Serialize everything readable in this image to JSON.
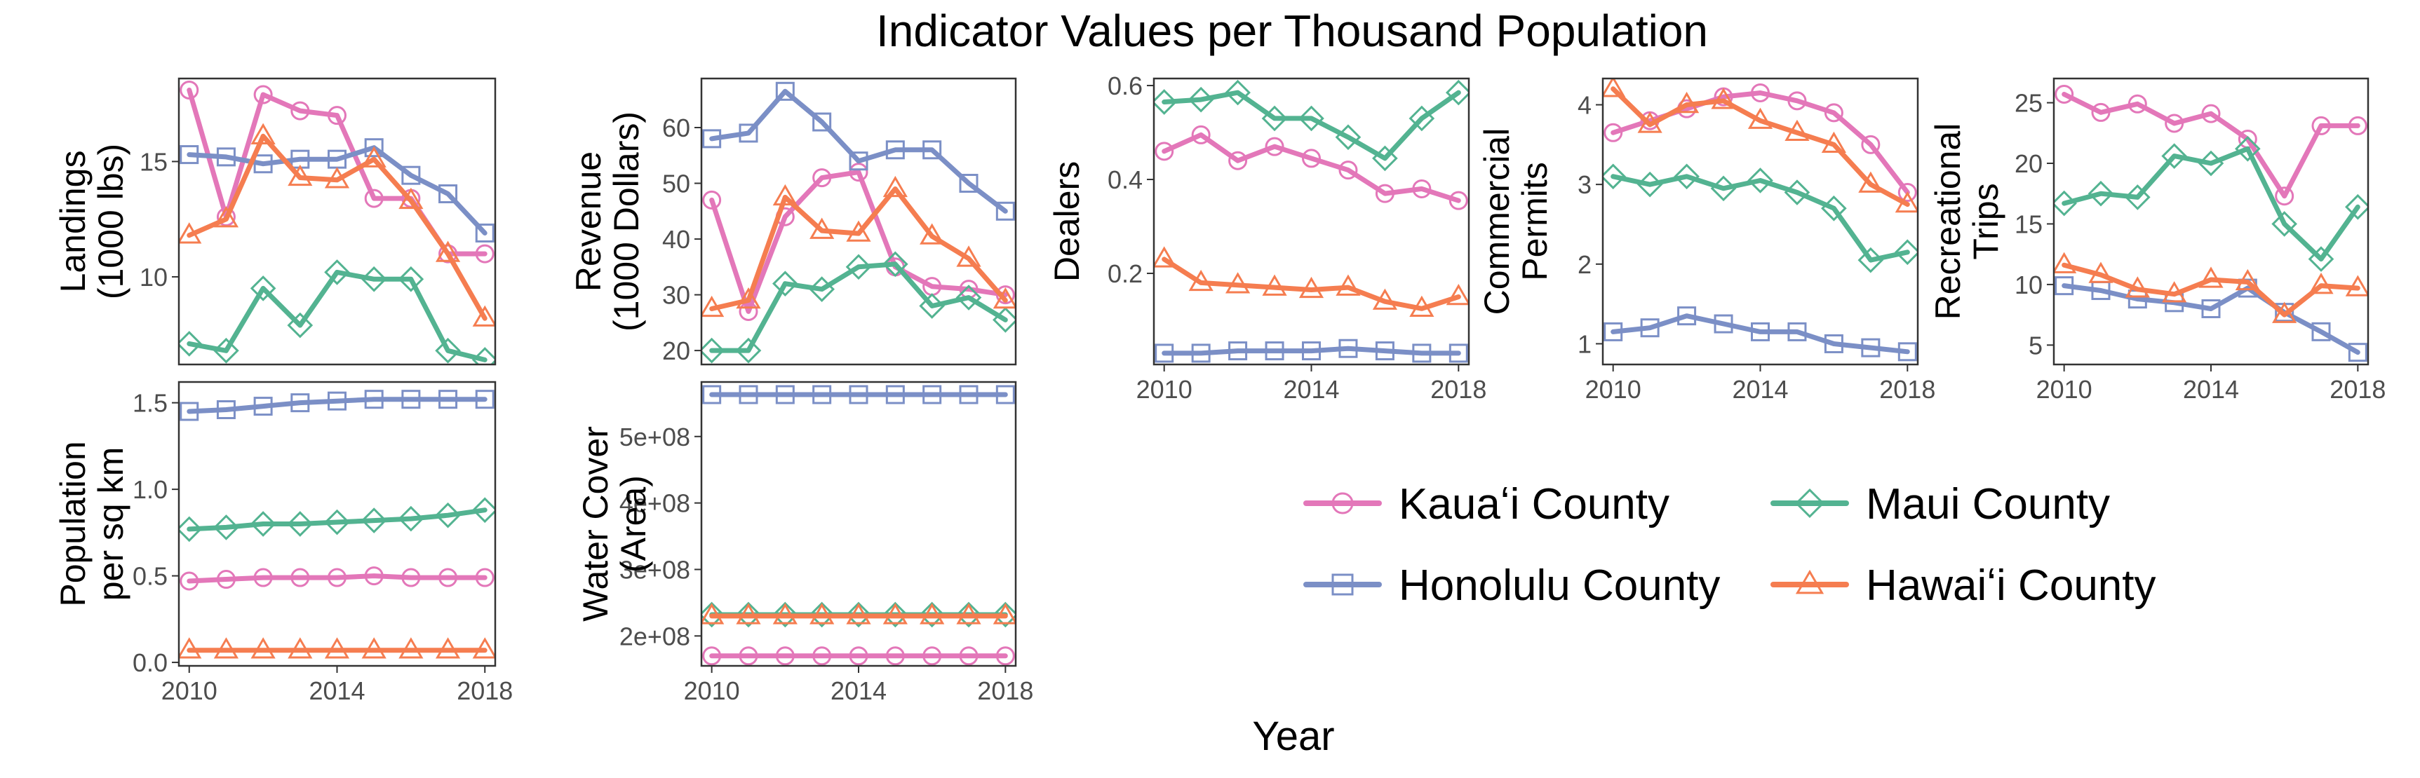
{
  "figure": {
    "title": "Indicator Values per Thousand Population",
    "xlabel": "Year"
  },
  "colors": {
    "kauai": "#e377b9",
    "honolulu": "#7b8fc6",
    "maui": "#53b391",
    "hawaii": "#f57d50"
  },
  "legend": [
    {
      "key": "kauai",
      "label": "Kauaʻi County",
      "marker": "circle"
    },
    {
      "key": "maui",
      "label": "Maui County",
      "marker": "diamond"
    },
    {
      "key": "honolulu",
      "label": "Honolulu County",
      "marker": "square"
    },
    {
      "key": "hawaii",
      "label": "Hawaiʻi County",
      "marker": "triangle"
    }
  ],
  "chart_data": [
    {
      "type": "line",
      "ylabel": [
        "Landings",
        "(1000 lbs)"
      ],
      "ylim": [
        6.2,
        18.6
      ],
      "yticks": [
        10,
        15
      ],
      "yticklabels": [
        "10",
        "15"
      ],
      "xticks": [],
      "x": [
        2010,
        2011,
        2012,
        2013,
        2014,
        2015,
        2016,
        2017,
        2018
      ],
      "series": [
        {
          "name": "Kauaʻi County",
          "key": "kauai",
          "values": [
            18.1,
            12.6,
            17.9,
            17.2,
            17.0,
            13.4,
            13.4,
            11.0,
            11.0
          ]
        },
        {
          "name": "Honolulu County",
          "key": "honolulu",
          "values": [
            15.3,
            15.2,
            14.9,
            15.1,
            15.1,
            15.6,
            14.4,
            13.6,
            11.9
          ]
        },
        {
          "name": "Maui County",
          "key": "maui",
          "values": [
            7.1,
            6.8,
            9.5,
            7.9,
            10.2,
            9.9,
            9.9,
            6.8,
            6.4
          ]
        },
        {
          "name": "Hawaiʻi County",
          "key": "hawaii",
          "values": [
            11.8,
            12.5,
            16.1,
            14.3,
            14.2,
            15.1,
            13.3,
            11.0,
            8.2
          ]
        }
      ]
    },
    {
      "type": "line",
      "ylabel": [
        "Revenue",
        "(1000 Dollars)"
      ],
      "ylim": [
        17.5,
        68.8
      ],
      "yticks": [
        20,
        30,
        40,
        50,
        60
      ],
      "yticklabels": [
        "20",
        "30",
        "40",
        "50",
        "60"
      ],
      "xticks": [],
      "x": [
        2010,
        2011,
        2012,
        2013,
        2014,
        2015,
        2016,
        2017,
        2018
      ],
      "series": [
        {
          "name": "Kauaʻi County",
          "key": "kauai",
          "values": [
            47,
            27,
            44,
            51,
            52,
            35,
            31.5,
            31,
            30
          ]
        },
        {
          "name": "Honolulu County",
          "key": "honolulu",
          "values": [
            58,
            59,
            66.5,
            61,
            54,
            56,
            56,
            50,
            45
          ]
        },
        {
          "name": "Maui County",
          "key": "maui",
          "values": [
            20,
            20,
            32,
            31,
            35,
            35.5,
            28,
            29.5,
            25.5
          ]
        },
        {
          "name": "Hawaiʻi County",
          "key": "hawaii",
          "values": [
            27.5,
            29,
            47.5,
            41.5,
            41,
            49,
            40.5,
            36.5,
            29
          ]
        }
      ]
    },
    {
      "type": "line",
      "ylabel": [
        "Dealers"
      ],
      "ylim": [
        0.006,
        0.615
      ],
      "yticks": [
        0.2,
        0.4,
        0.6
      ],
      "yticklabels": [
        "0.2",
        "0.4",
        "0.6"
      ],
      "xticks": [
        2010,
        2014,
        2018
      ],
      "xticklabels": [
        "2010",
        "2014",
        "2018"
      ],
      "x": [
        2010,
        2011,
        2012,
        2013,
        2014,
        2015,
        2016,
        2017,
        2018
      ],
      "series": [
        {
          "name": "Kauaʻi County",
          "key": "kauai",
          "values": [
            0.46,
            0.495,
            0.44,
            0.47,
            0.445,
            0.42,
            0.37,
            0.38,
            0.355
          ]
        },
        {
          "name": "Honolulu County",
          "key": "honolulu",
          "values": [
            0.03,
            0.03,
            0.035,
            0.035,
            0.035,
            0.04,
            0.035,
            0.03,
            0.03
          ]
        },
        {
          "name": "Maui County",
          "key": "maui",
          "values": [
            0.565,
            0.57,
            0.585,
            0.53,
            0.53,
            0.49,
            0.445,
            0.53,
            0.585
          ]
        },
        {
          "name": "Hawaiʻi County",
          "key": "hawaii",
          "values": [
            0.23,
            0.18,
            0.175,
            0.17,
            0.165,
            0.17,
            0.14,
            0.125,
            0.15
          ]
        }
      ]
    },
    {
      "type": "line",
      "ylabel": [
        "Commercial",
        "Permits"
      ],
      "ylim": [
        0.74,
        4.33
      ],
      "yticks": [
        1,
        2,
        3,
        4
      ],
      "yticklabels": [
        "1",
        "2",
        "3",
        "4"
      ],
      "xticks": [
        2010,
        2014,
        2018
      ],
      "xticklabels": [
        "2010",
        "2014",
        "2018"
      ],
      "x": [
        2010,
        2011,
        2012,
        2013,
        2014,
        2015,
        2016,
        2017,
        2018
      ],
      "series": [
        {
          "name": "Kauaʻi County",
          "key": "kauai",
          "values": [
            3.65,
            3.8,
            3.95,
            4.1,
            4.15,
            4.05,
            3.9,
            3.5,
            2.9
          ]
        },
        {
          "name": "Honolulu County",
          "key": "honolulu",
          "values": [
            1.15,
            1.2,
            1.35,
            1.25,
            1.15,
            1.15,
            1.0,
            0.95,
            0.9
          ]
        },
        {
          "name": "Maui County",
          "key": "maui",
          "values": [
            3.1,
            3.0,
            3.1,
            2.95,
            3.05,
            2.9,
            2.7,
            2.05,
            2.15
          ]
        },
        {
          "name": "Hawaiʻi County",
          "key": "hawaii",
          "values": [
            4.2,
            3.75,
            4.0,
            4.05,
            3.8,
            3.65,
            3.5,
            3.0,
            2.75
          ]
        }
      ]
    },
    {
      "type": "line",
      "ylabel": [
        "Recreational",
        "Trips"
      ],
      "ylim": [
        3.4,
        27.0
      ],
      "yticks": [
        5,
        10,
        15,
        20,
        25
      ],
      "yticklabels": [
        "5",
        "10",
        "15",
        "20",
        "25"
      ],
      "xticks": [
        2010,
        2014,
        2018
      ],
      "xticklabels": [
        "2010",
        "2014",
        "2018"
      ],
      "x": [
        2010,
        2011,
        2012,
        2013,
        2014,
        2015,
        2016,
        2017,
        2018
      ],
      "series": [
        {
          "name": "Kauaʻi County",
          "key": "kauai",
          "values": [
            25.7,
            24.2,
            24.9,
            23.3,
            24.1,
            22.0,
            17.3,
            23.1,
            23.1
          ]
        },
        {
          "name": "Honolulu County",
          "key": "honolulu",
          "values": [
            9.9,
            9.5,
            8.8,
            8.5,
            8.0,
            9.7,
            7.7,
            6.1,
            4.4
          ]
        },
        {
          "name": "Maui County",
          "key": "maui",
          "values": [
            16.7,
            17.5,
            17.2,
            20.6,
            20.0,
            21.2,
            15.0,
            12.1,
            16.4
          ]
        },
        {
          "name": "Hawaiʻi County",
          "key": "hawaii",
          "values": [
            11.6,
            10.8,
            9.6,
            9.2,
            10.4,
            10.2,
            7.5,
            9.9,
            9.7
          ]
        }
      ]
    },
    {
      "type": "line",
      "ylabel": [
        "Population",
        "per sq km"
      ],
      "ylim": [
        -0.02,
        1.62
      ],
      "yticks": [
        0.0,
        0.5,
        1.0,
        1.5
      ],
      "yticklabels": [
        "0.0",
        "0.5",
        "1.0",
        "1.5"
      ],
      "xticks": [
        2010,
        2014,
        2018
      ],
      "xticklabels": [
        "2010",
        "2014",
        "2018"
      ],
      "x": [
        2010,
        2011,
        2012,
        2013,
        2014,
        2015,
        2016,
        2017,
        2018
      ],
      "series": [
        {
          "name": "Kauaʻi County",
          "key": "kauai",
          "values": [
            0.47,
            0.48,
            0.49,
            0.49,
            0.49,
            0.5,
            0.49,
            0.49,
            0.49
          ]
        },
        {
          "name": "Honolulu County",
          "key": "honolulu",
          "values": [
            1.45,
            1.46,
            1.48,
            1.5,
            1.51,
            1.52,
            1.52,
            1.52,
            1.52
          ]
        },
        {
          "name": "Maui County",
          "key": "maui",
          "values": [
            0.77,
            0.78,
            0.8,
            0.8,
            0.81,
            0.82,
            0.83,
            0.85,
            0.88
          ]
        },
        {
          "name": "Hawaiʻi County",
          "key": "hawaii",
          "values": [
            0.07,
            0.07,
            0.07,
            0.07,
            0.07,
            0.07,
            0.07,
            0.07,
            0.07
          ]
        }
      ]
    },
    {
      "type": "line",
      "ylabel": [
        "Water Cover",
        "(Area)"
      ],
      "ylim": [
        155000000,
        582000000
      ],
      "yticks": [
        200000000,
        300000000,
        400000000,
        500000000
      ],
      "yticklabels": [
        "2e+08",
        "3e+08",
        "4e+08",
        "5e+08"
      ],
      "xticks": [
        2010,
        2014,
        2018
      ],
      "xticklabels": [
        "2010",
        "2014",
        "2018"
      ],
      "x": [
        2010,
        2011,
        2012,
        2013,
        2014,
        2015,
        2016,
        2017,
        2018
      ],
      "series": [
        {
          "name": "Kauaʻi County",
          "key": "kauai",
          "values": [
            170000000,
            170000000,
            170000000,
            170000000,
            170000000,
            170000000,
            170000000,
            170000000,
            170000000
          ]
        },
        {
          "name": "Honolulu County",
          "key": "honolulu",
          "values": [
            563000000,
            563000000,
            563000000,
            563000000,
            563000000,
            563000000,
            563000000,
            563000000,
            563000000
          ]
        },
        {
          "name": "Maui County",
          "key": "maui",
          "values": [
            232000000,
            232000000,
            232000000,
            232000000,
            232000000,
            232000000,
            232000000,
            232000000,
            232000000
          ]
        },
        {
          "name": "Hawaiʻi County",
          "key": "hawaii",
          "values": [
            230000000,
            230000000,
            230000000,
            230000000,
            230000000,
            230000000,
            230000000,
            230000000,
            230000000
          ]
        }
      ]
    }
  ]
}
